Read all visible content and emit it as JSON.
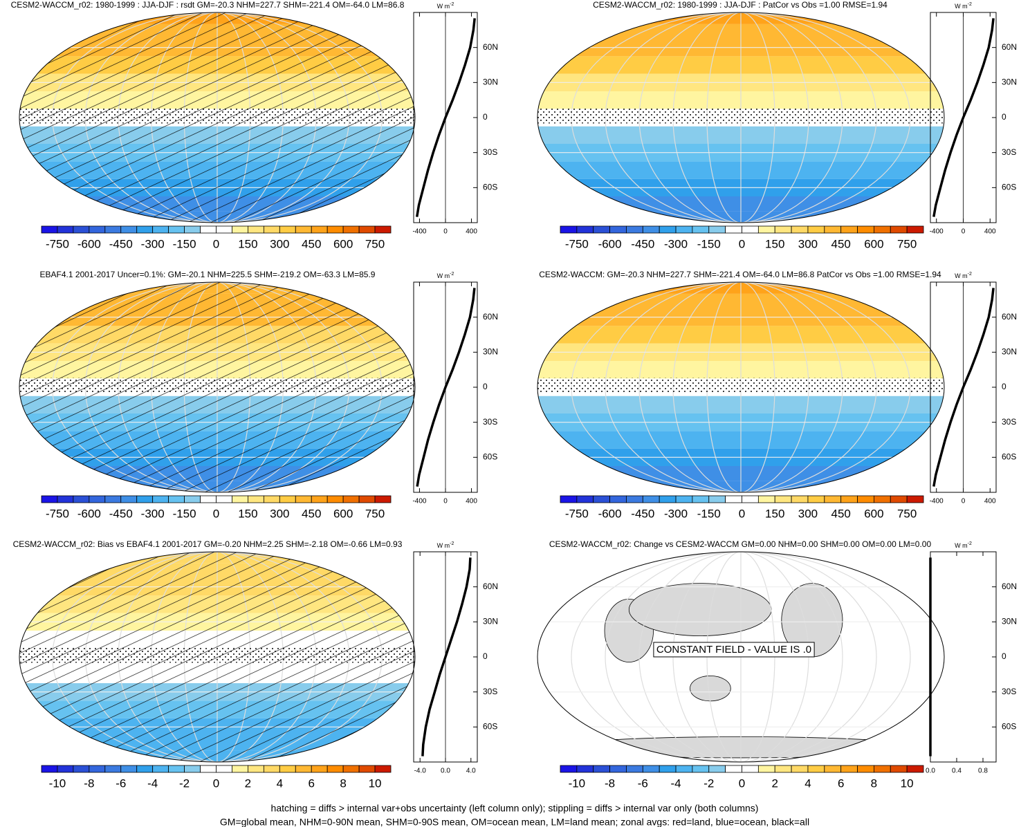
{
  "chart_data": [
    {
      "type": "map",
      "title": "CESM2-WACCM_r02: 1980-1999 : JJA-DJF : rsdt GM=-20.3 NHM=227.7 SHM=-221.4 OM=-64.0 LM=86.8",
      "shade": true,
      "hatching": true,
      "units": "W m",
      "units_exp": "-2",
      "lat": [
        -85,
        -75,
        -60,
        -45,
        -30,
        -15,
        0,
        15,
        30,
        45,
        60,
        75,
        85
      ],
      "values": [
        -440,
        -410,
        -340,
        -270,
        -190,
        -100,
        0,
        110,
        210,
        300,
        380,
        430,
        450
      ],
      "xlim": [
        -490,
        490
      ],
      "xticks": [
        -400,
        0,
        400
      ],
      "ylim": [
        -90,
        90
      ],
      "yticks": [
        {
          "value": -60,
          "label": "60S"
        },
        {
          "value": -30,
          "label": "30S"
        },
        0,
        {
          "value": 30,
          "label": "30N"
        },
        {
          "value": 60,
          "label": "60N"
        }
      ],
      "clim": [
        -825,
        825
      ],
      "cticks": [
        -750,
        -600,
        -450,
        -300,
        -150,
        0,
        150,
        300,
        450,
        600,
        750
      ],
      "colors": [
        "#1a14e6",
        "#2233d9",
        "#2b50d6",
        "#3366dd",
        "#3b7ae0",
        "#3f8fe6",
        "#30a0eb",
        "#4db3f0",
        "#66c2f0",
        "#88ccec",
        "#ffffff",
        "#ffffff",
        "#fff5a0",
        "#ffe680",
        "#ffd966",
        "#ffcc44",
        "#ffb833",
        "#ffa31a",
        "#ff8c00",
        "#f07000",
        "#e04a00",
        "#cc1a00"
      ]
    },
    {
      "type": "map",
      "title": "CESM2-WACCM_r02: 1980-1999 : JJA-DJF : PatCor vs Obs =1.00 RMSE=1.94",
      "shade": true,
      "hatching": false,
      "units": "W m",
      "units_exp": "-2",
      "lat": [
        -85,
        -75,
        -60,
        -45,
        -30,
        -15,
        0,
        15,
        30,
        45,
        60,
        75,
        85
      ],
      "values": [
        -440,
        -410,
        -340,
        -270,
        -190,
        -100,
        0,
        110,
        210,
        300,
        380,
        430,
        450
      ],
      "xlim": [
        -490,
        490
      ],
      "xticks": [
        -400,
        0,
        400
      ],
      "ylim": [
        -90,
        90
      ],
      "yticks": [
        {
          "value": -60,
          "label": "60S"
        },
        {
          "value": -30,
          "label": "30S"
        },
        0,
        {
          "value": 30,
          "label": "30N"
        },
        {
          "value": 60,
          "label": "60N"
        }
      ],
      "clim": [
        -825,
        825
      ],
      "cticks": [
        -750,
        -600,
        -450,
        -300,
        -150,
        0,
        150,
        300,
        450,
        600,
        750
      ],
      "colors": [
        "#1a14e6",
        "#2233d9",
        "#2b50d6",
        "#3366dd",
        "#3b7ae0",
        "#3f8fe6",
        "#30a0eb",
        "#4db3f0",
        "#66c2f0",
        "#88ccec",
        "#ffffff",
        "#ffffff",
        "#fff5a0",
        "#ffe680",
        "#ffd966",
        "#ffcc44",
        "#ffb833",
        "#ffa31a",
        "#ff8c00",
        "#f07000",
        "#e04a00",
        "#cc1a00"
      ]
    },
    {
      "type": "map",
      "title": "EBAF4.1 2001-2017 Uncer=0.1%: GM=-20.1 NHM=225.5 SHM=-219.2 OM=-63.3 LM=85.9",
      "shade": true,
      "hatching": true,
      "units": "W m",
      "units_exp": "-2",
      "lat": [
        -85,
        -75,
        -60,
        -45,
        -30,
        -15,
        0,
        15,
        30,
        45,
        60,
        75,
        85
      ],
      "values": [
        -436,
        -406,
        -337,
        -268,
        -188,
        -99,
        0,
        109,
        208,
        297,
        377,
        427,
        446
      ],
      "xlim": [
        -490,
        490
      ],
      "xticks": [
        -400,
        0,
        400
      ],
      "ylim": [
        -90,
        90
      ],
      "yticks": [
        {
          "value": -60,
          "label": "60S"
        },
        {
          "value": -30,
          "label": "30S"
        },
        0,
        {
          "value": 30,
          "label": "30N"
        },
        {
          "value": 60,
          "label": "60N"
        }
      ],
      "clim": [
        -825,
        825
      ],
      "cticks": [
        -750,
        -600,
        -450,
        -300,
        -150,
        0,
        150,
        300,
        450,
        600,
        750
      ],
      "colors": [
        "#1a14e6",
        "#2233d9",
        "#2b50d6",
        "#3366dd",
        "#3b7ae0",
        "#3f8fe6",
        "#30a0eb",
        "#4db3f0",
        "#66c2f0",
        "#88ccec",
        "#ffffff",
        "#ffffff",
        "#fff5a0",
        "#ffe680",
        "#ffd966",
        "#ffcc44",
        "#ffb833",
        "#ffa31a",
        "#ff8c00",
        "#f07000",
        "#e04a00",
        "#cc1a00"
      ]
    },
    {
      "type": "map",
      "title": "CESM2-WACCM: GM=-20.3 NHM=227.7 SHM=-221.4 OM=-64.0 LM=86.8 PatCor vs Obs =1.00 RMSE=1.94",
      "shade": true,
      "hatching": false,
      "units": "W m",
      "units_exp": "-2",
      "lat": [
        -85,
        -75,
        -60,
        -45,
        -30,
        -15,
        0,
        15,
        30,
        45,
        60,
        75,
        85
      ],
      "values": [
        -440,
        -410,
        -340,
        -270,
        -190,
        -100,
        0,
        110,
        210,
        300,
        380,
        430,
        450
      ],
      "xlim": [
        -490,
        490
      ],
      "xticks": [
        -400,
        0,
        400
      ],
      "ylim": [
        -90,
        90
      ],
      "yticks": [
        {
          "value": -60,
          "label": "60S"
        },
        {
          "value": -30,
          "label": "30S"
        },
        0,
        {
          "value": 30,
          "label": "30N"
        },
        {
          "value": 60,
          "label": "60N"
        }
      ],
      "clim": [
        -825,
        825
      ],
      "cticks": [
        -750,
        -600,
        -450,
        -300,
        -150,
        0,
        150,
        300,
        450,
        600,
        750
      ],
      "colors": [
        "#1a14e6",
        "#2233d9",
        "#2b50d6",
        "#3366dd",
        "#3b7ae0",
        "#3f8fe6",
        "#30a0eb",
        "#4db3f0",
        "#66c2f0",
        "#88ccec",
        "#ffffff",
        "#ffffff",
        "#fff5a0",
        "#ffe680",
        "#ffd966",
        "#ffcc44",
        "#ffb833",
        "#ffa31a",
        "#ff8c00",
        "#f07000",
        "#e04a00",
        "#cc1a00"
      ]
    },
    {
      "type": "map",
      "title": "CESM2-WACCM_r02: Bias vs EBAF4.1 2001-2017 GM=-0.20 NHM=2.25 SHM=-2.18 OM=-0.66 LM=0.93",
      "shade": true,
      "hatching": true,
      "units": "W m",
      "units_exp": "-2",
      "lat": [
        -85,
        -75,
        -60,
        -45,
        -30,
        -15,
        0,
        15,
        30,
        45,
        60,
        75,
        85
      ],
      "values": [
        -3.6,
        -3.5,
        -3.1,
        -2.5,
        -1.7,
        -0.9,
        0,
        0.9,
        1.8,
        2.6,
        3.3,
        3.8,
        3.9
      ],
      "xlim": [
        -5,
        5
      ],
      "xticks": [
        {
          "value": -4,
          "label": "-4.0"
        },
        {
          "value": 0,
          "label": "0.0"
        },
        {
          "value": 4,
          "label": "4.0"
        }
      ],
      "ylim": [
        -90,
        90
      ],
      "yticks": [
        {
          "value": -60,
          "label": "60S"
        },
        {
          "value": -30,
          "label": "30S"
        },
        0,
        {
          "value": 30,
          "label": "30N"
        },
        {
          "value": 60,
          "label": "60N"
        }
      ],
      "clim": [
        -11,
        11
      ],
      "cticks": [
        -10,
        -8,
        -6,
        -4,
        -2,
        0,
        2,
        4,
        6,
        8,
        10
      ],
      "colors": [
        "#1a14e6",
        "#2233d9",
        "#2b50d6",
        "#3366dd",
        "#3b7ae0",
        "#3f8fe6",
        "#30a0eb",
        "#4db3f0",
        "#66c2f0",
        "#88ccec",
        "#ffffff",
        "#ffffff",
        "#fff5a0",
        "#ffe680",
        "#ffd966",
        "#ffcc44",
        "#ffb833",
        "#ffa31a",
        "#ff8c00",
        "#f07000",
        "#e04a00",
        "#cc1a00"
      ]
    },
    {
      "type": "map",
      "title": "CESM2-WACCM_r02: Change vs CESM2-WACCM GM=0.00 NHM=0.00 SHM=0.00 OM=0.00 LM=0.00",
      "shade": false,
      "hatching": false,
      "annotation": "CONSTANT FIELD - VALUE IS .0",
      "units": "W m",
      "units_exp": "-2",
      "lat": [
        -85,
        -75,
        -60,
        -45,
        -30,
        -15,
        0,
        15,
        30,
        45,
        60,
        75,
        85
      ],
      "values": [
        0,
        0,
        0,
        0,
        0,
        0,
        0,
        0,
        0,
        0,
        0,
        0,
        0
      ],
      "xlim": [
        0,
        1
      ],
      "xticks": [
        {
          "value": 0,
          "label": "0.0"
        },
        {
          "value": 0.4,
          "label": "0.4"
        },
        {
          "value": 0.8,
          "label": "0.8"
        }
      ],
      "ylim": [
        -90,
        90
      ],
      "yticks": [
        {
          "value": -60,
          "label": "60S"
        },
        {
          "value": -30,
          "label": "30S"
        },
        0,
        {
          "value": 30,
          "label": "30N"
        },
        {
          "value": 60,
          "label": "60N"
        }
      ],
      "clim": [
        -11,
        11
      ],
      "cticks": [
        -10,
        -8,
        -6,
        -4,
        -2,
        0,
        2,
        4,
        6,
        8,
        10
      ],
      "colors": [
        "#1a14e6",
        "#2233d9",
        "#2b50d6",
        "#3366dd",
        "#3b7ae0",
        "#3f8fe6",
        "#30a0eb",
        "#4db3f0",
        "#66c2f0",
        "#88ccec",
        "#ffffff",
        "#ffffff",
        "#fff5a0",
        "#ffe680",
        "#ffd966",
        "#ffcc44",
        "#ffb833",
        "#ffa31a",
        "#ff8c00",
        "#f07000",
        "#e04a00",
        "#cc1a00"
      ]
    }
  ],
  "notes": [
    "hatching = diffs > internal var+obs uncertainty (left column only); stippling = diffs > internal var only (both columns)",
    "GM=global mean, NHM=0-90N mean, SHM=0-90S mean, OM=ocean mean, LM=land mean; zonal avgs: red=land, blue=ocean, black=all"
  ]
}
